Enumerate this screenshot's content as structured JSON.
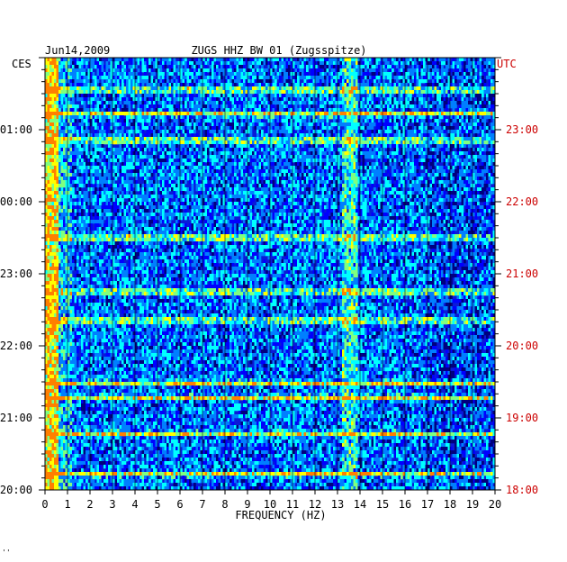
{
  "chart_data": {
    "type": "heatmap",
    "title": "ZUGS HHZ BW 01 (Zugsspitze)",
    "date": "Jun14,2009",
    "xlabel": "FREQUENCY (HZ)",
    "x_ticks": [
      "0",
      "1",
      "2",
      "3",
      "4",
      "5",
      "6",
      "7",
      "8",
      "9",
      "10",
      "11",
      "12",
      "13",
      "14",
      "15",
      "16",
      "17",
      "18",
      "19",
      "20"
    ],
    "xlim": [
      0,
      20
    ],
    "left_axis": {
      "label": "CES",
      "ticks": [
        "01:00",
        "00:00",
        "23:00",
        "22:00",
        "21:00",
        "20:00"
      ],
      "color": "#000000"
    },
    "right_axis": {
      "label": "UTC",
      "ticks": [
        "23:00",
        "22:00",
        "21:00",
        "20:00",
        "19:00",
        "18:00"
      ],
      "color": "#cc0000"
    },
    "time_range_utc": [
      "18:00",
      "23:35"
    ],
    "hours_shown_utc": 6,
    "colormap": [
      "#00007f",
      "#0000ff",
      "#007fff",
      "#00ffff",
      "#7fff7f",
      "#ffff00",
      "#ff7f00"
    ],
    "grid": true,
    "features": {
      "low_freq_band_hz": [
        0,
        0.6
      ],
      "resonance_band_hz": [
        13.2,
        13.9
      ],
      "bright_rows_utc_hour_fraction": [
        0.22,
        0.78,
        1.28,
        1.48,
        2.35,
        2.75,
        3.5,
        4.85,
        5.22,
        5.55
      ]
    },
    "footnote": "''"
  }
}
